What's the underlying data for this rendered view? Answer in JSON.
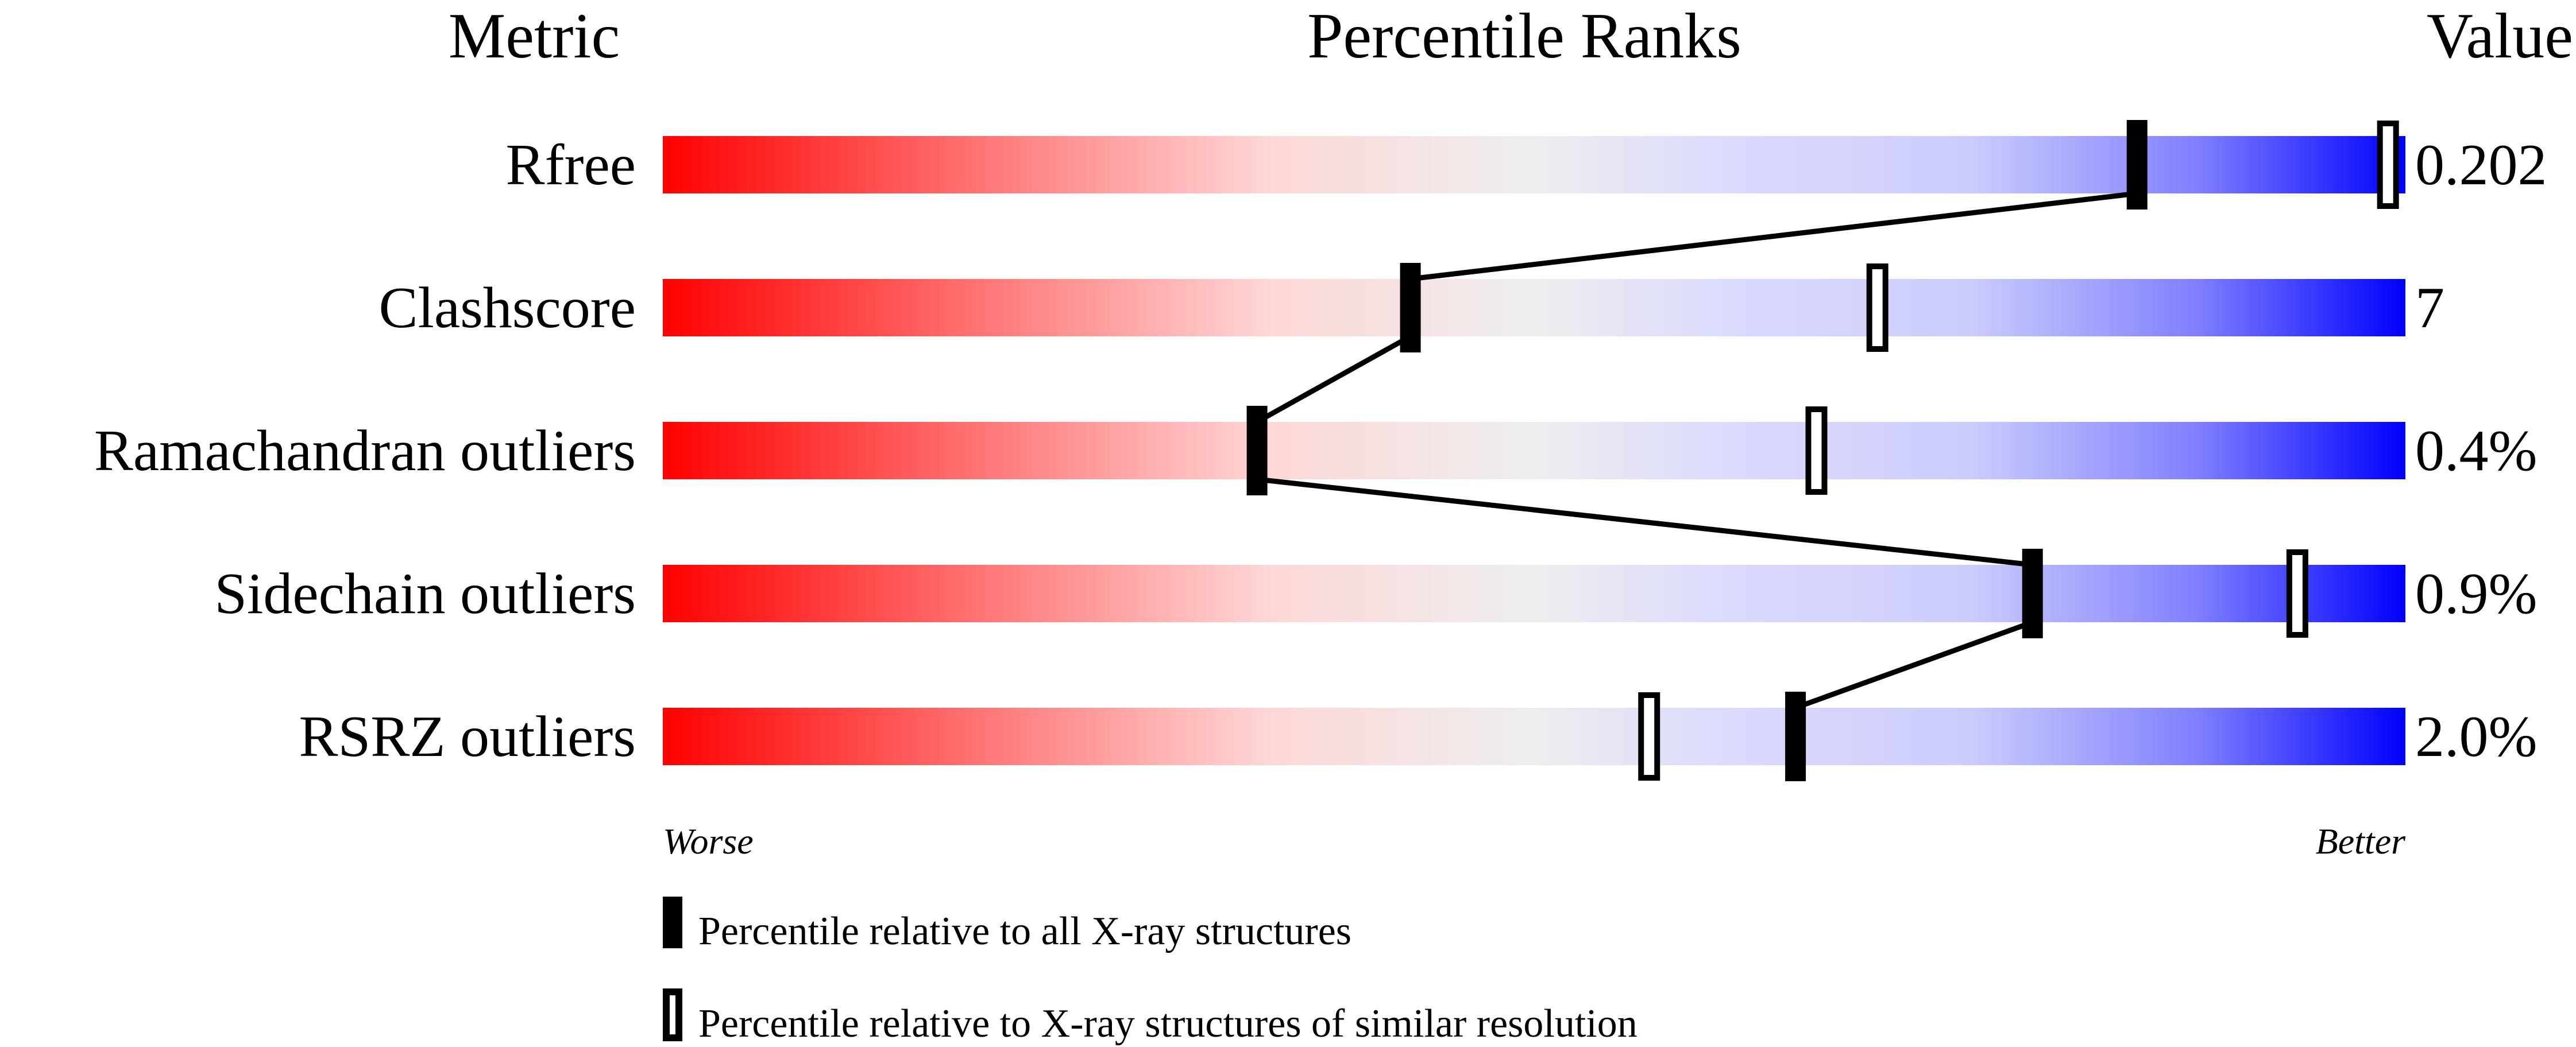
{
  "chart_data": {
    "type": "percentile-bar",
    "headers": {
      "metric": "Metric",
      "ranks": "Percentile Ranks",
      "value": "Value"
    },
    "xlim": [
      0,
      100
    ],
    "axis_labels": {
      "left": "Worse",
      "right": "Better"
    },
    "gradient_colors": [
      "#ff0000",
      "#eeeeee",
      "#ddddff",
      "#0000ff"
    ],
    "rows": [
      {
        "metric": "Rfree",
        "value": "0.202",
        "percentile_all": 84.6,
        "percentile_similar": 99.0
      },
      {
        "metric": "Clashscore",
        "value": "7",
        "percentile_all": 42.9,
        "percentile_similar": 69.7
      },
      {
        "metric": "Ramachandran outliers",
        "value": "0.4%",
        "percentile_all": 34.1,
        "percentile_similar": 66.2
      },
      {
        "metric": "Sidechain outliers",
        "value": "0.9%",
        "percentile_all": 78.6,
        "percentile_similar": 93.8
      },
      {
        "metric": "RSRZ outliers",
        "value": "2.0%",
        "percentile_all": 65.0,
        "percentile_similar": 56.6
      }
    ],
    "legend": [
      {
        "marker": "filled",
        "label": "Percentile relative to all X-ray structures"
      },
      {
        "marker": "open",
        "label": "Percentile relative to X-ray structures of similar resolution"
      }
    ]
  }
}
